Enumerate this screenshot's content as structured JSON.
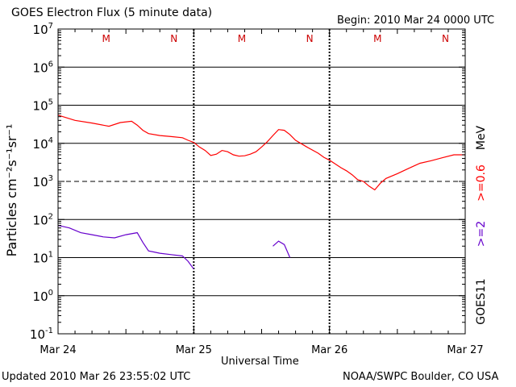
{
  "chart_data": {
    "type": "line",
    "title": "GOES Electron Flux (5 minute data)",
    "begin_label": "Begin: 2010 Mar 24 0000 UTC",
    "xlabel": "Universal Time",
    "ylabel": "Particles cm⁻²s⁻¹sr⁻¹",
    "yscale": "log",
    "ylim": [
      0.1,
      10000000
    ],
    "xlim": [
      0,
      72
    ],
    "x_unit": "hours since 2010 Mar 24 0000 UTC",
    "x_ticks": [
      {
        "x": 0,
        "label": "Mar 24"
      },
      {
        "x": 24,
        "label": "Mar 25"
      },
      {
        "x": 48,
        "label": "Mar 26"
      },
      {
        "x": 72,
        "label": "Mar 27"
      }
    ],
    "y_ticks": [
      {
        "value": 10000000,
        "base": "10",
        "exp": "7"
      },
      {
        "value": 1000000,
        "base": "10",
        "exp": "6"
      },
      {
        "value": 100000,
        "base": "10",
        "exp": "5"
      },
      {
        "value": 10000,
        "base": "10",
        "exp": "4"
      },
      {
        "value": 1000,
        "base": "10",
        "exp": "3"
      },
      {
        "value": 100,
        "base": "10",
        "exp": "2"
      },
      {
        "value": 10,
        "base": "10",
        "exp": "1"
      },
      {
        "value": 1,
        "base": "10",
        "exp": "0"
      },
      {
        "value": 0.1,
        "base": "10",
        "exp": "-1"
      }
    ],
    "grid_lines": [
      {
        "value": 1000000,
        "style": "solid"
      },
      {
        "value": 100000,
        "style": "solid"
      },
      {
        "value": 10000,
        "style": "solid"
      },
      {
        "value": 1000,
        "style": "dashed"
      },
      {
        "value": 100,
        "style": "solid"
      },
      {
        "value": 10,
        "style": "solid"
      },
      {
        "value": 1,
        "style": "solid"
      }
    ],
    "day_boundaries": [
      24,
      48
    ],
    "markers": [
      {
        "x": 8.5,
        "label": "M"
      },
      {
        "x": 20.5,
        "label": "N"
      },
      {
        "x": 32.5,
        "label": "M"
      },
      {
        "x": 44.5,
        "label": "N"
      },
      {
        "x": 56.5,
        "label": "M"
      },
      {
        "x": 68.5,
        "label": "N"
      }
    ],
    "series": [
      {
        "name": ">=0.6 MeV",
        "color": "#ff0000",
        "x": [
          0,
          3,
          6,
          9,
          11,
          13,
          14,
          15,
          16,
          18,
          20,
          22,
          23,
          24,
          25,
          26,
          27,
          28,
          29,
          30,
          31,
          32,
          33,
          34,
          35,
          36,
          37,
          38,
          39,
          40,
          41,
          42,
          44,
          46,
          47,
          48,
          49,
          50,
          51,
          52,
          53,
          54,
          55,
          56,
          57,
          58,
          60,
          62,
          64,
          66,
          68,
          70,
          72
        ],
        "values": [
          55000,
          40000,
          34000,
          28000,
          35000,
          38000,
          30000,
          22000,
          18000,
          16000,
          15000,
          14000,
          12000,
          10500,
          8000,
          6500,
          4800,
          5200,
          6500,
          6000,
          5000,
          4600,
          4700,
          5200,
          6000,
          8000,
          11000,
          16000,
          23000,
          22000,
          17000,
          12000,
          8000,
          5500,
          4300,
          3600,
          2900,
          2300,
          1900,
          1500,
          1100,
          1000,
          750,
          600,
          900,
          1200,
          1600,
          2200,
          3000,
          3500,
          4200,
          5000,
          5000
        ]
      },
      {
        "name": ">=2 MeV",
        "color": "#6600cc",
        "x": [
          0,
          2,
          4,
          6,
          8,
          10,
          12,
          14,
          15,
          16,
          17,
          18,
          20,
          22,
          23,
          24
        ],
        "values": [
          70,
          60,
          45,
          40,
          35,
          33,
          40,
          45,
          25,
          15,
          14,
          13,
          12,
          11,
          8,
          5
        ],
        "late_activity": [
          {
            "x": 38,
            "value": 20
          },
          {
            "x": 39,
            "value": 27
          },
          {
            "x": 40,
            "value": 22
          },
          {
            "x": 41,
            "value": 10
          }
        ]
      }
    ],
    "right_labels": {
      "series_hi_1": ">=0.6",
      "series_hi_2": "MeV",
      "series_lo": ">=2",
      "satellite": "GOES11"
    }
  },
  "footer": {
    "updated": "Updated 2010 Mar 26 23:55:02 UTC",
    "credit": "NOAA/SWPC Boulder, CO USA"
  },
  "colors": {
    "red_series": "#ff0000",
    "purple_series": "#6600cc",
    "marker_red": "#cc0000"
  }
}
